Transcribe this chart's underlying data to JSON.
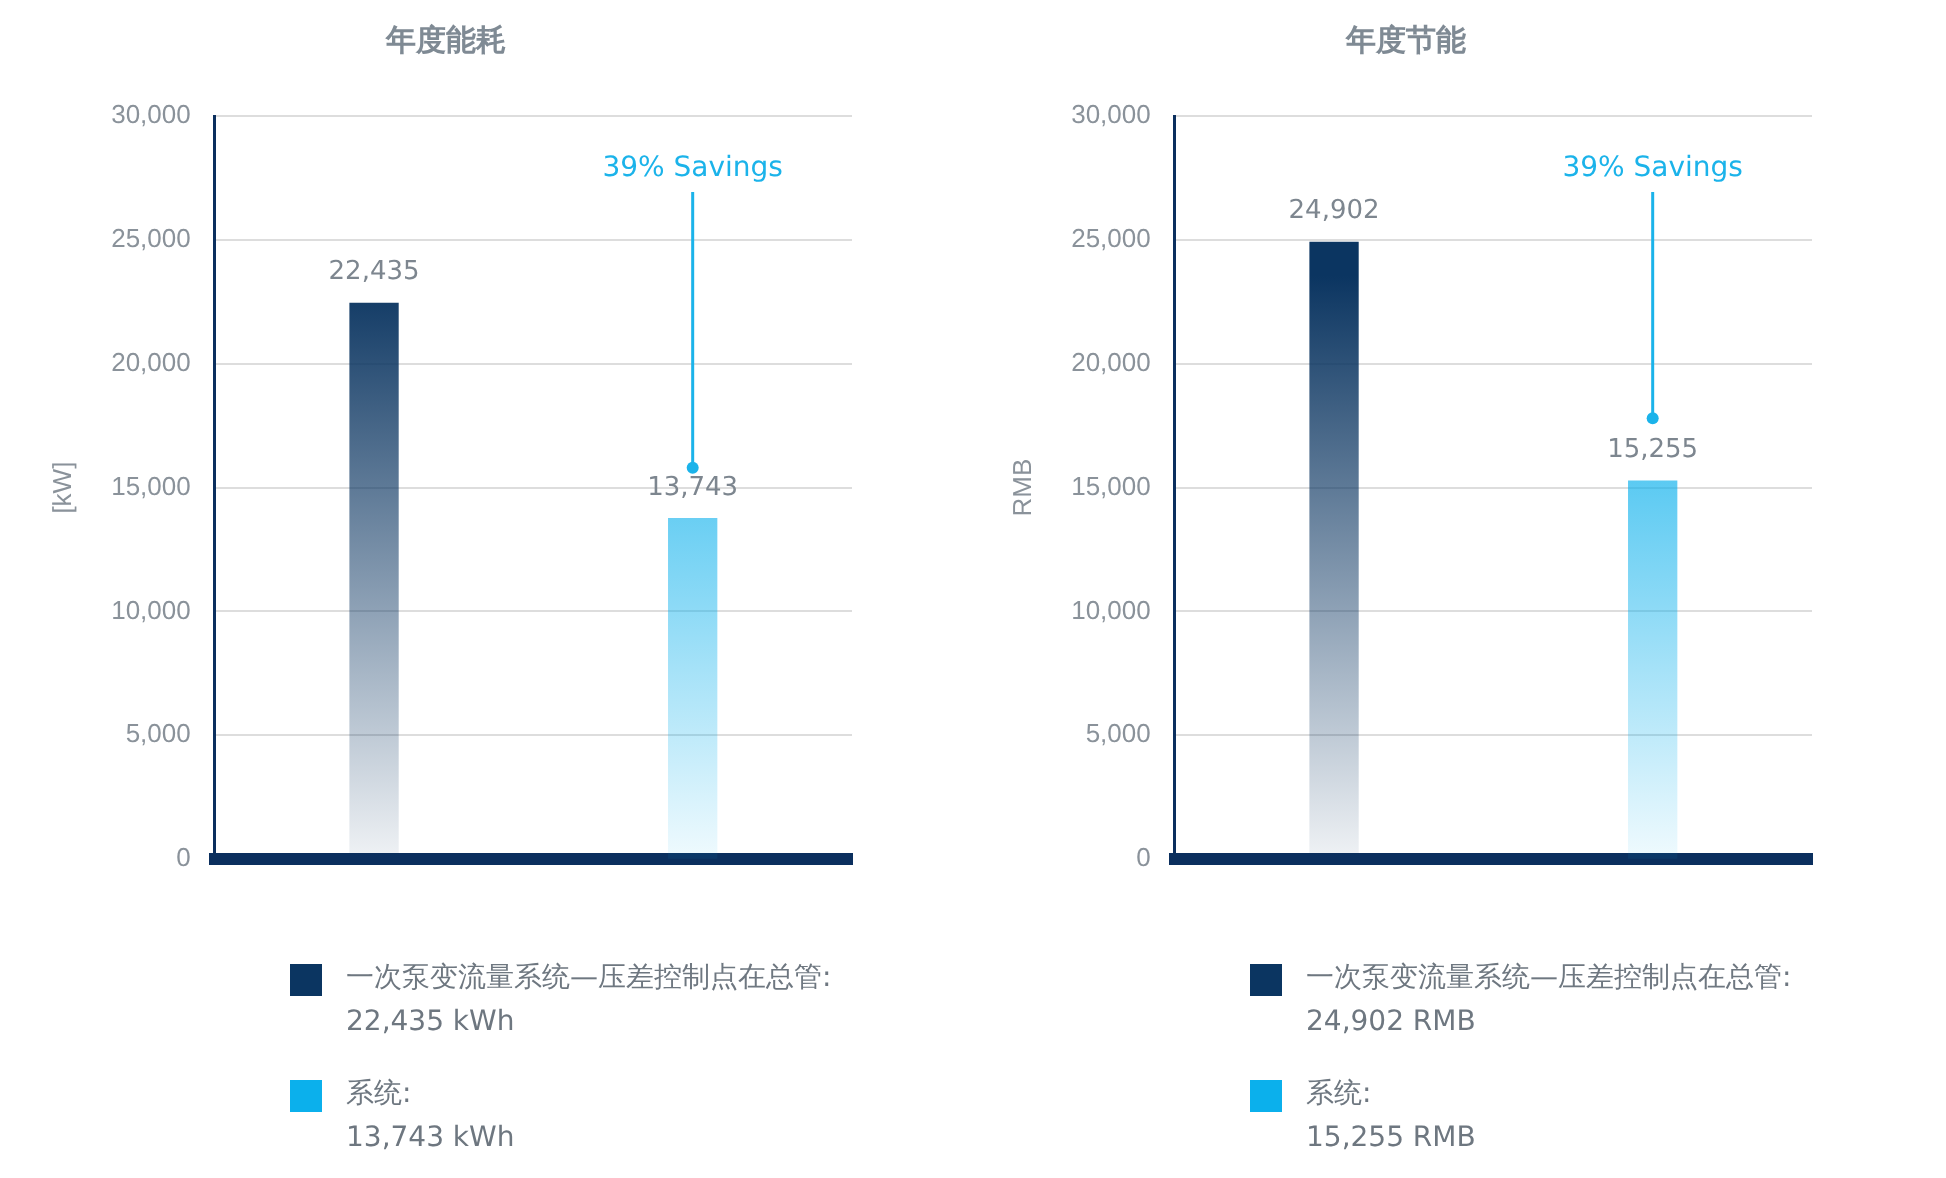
{
  "chart_data": [
    {
      "type": "bar",
      "title": "年度能耗",
      "ylabel": "[kW]",
      "categories": [
        null,
        null
      ],
      "series": [
        {
          "name": "一次泵变流量系统—压差控制点在总管:",
          "color": "#0b3561",
          "values": [
            22435,
            null
          ],
          "value_labels": [
            "22,435",
            null
          ]
        },
        {
          "name": "系统:",
          "color": "#0bb0ec",
          "values": [
            null,
            13743
          ],
          "value_labels": [
            null,
            "13,743"
          ]
        }
      ],
      "ylim": [
        0,
        30000
      ],
      "yticks": [
        0,
        {
          "value": 5000,
          "label": "5,000"
        },
        {
          "value": 10000,
          "label": "10,000"
        },
        {
          "value": 15000,
          "label": "15,000"
        },
        {
          "value": 20000,
          "label": "20,000"
        },
        {
          "value": 25000,
          "label": "25,000"
        },
        {
          "value": 30000,
          "label": "30,000"
        }
      ],
      "grid": "y",
      "legend": "bottom",
      "annotations": [
        "22,435 kWh",
        "13,743 kWh",
        {
          "text": "39% Savings",
          "y": 15800
        }
      ]
    },
    {
      "type": "bar",
      "title": "年度节能",
      "ylabel": "RMB",
      "categories": [
        null,
        null
      ],
      "series": [
        {
          "name": "一次泵变流量系统—压差控制点在总管:",
          "color": "#0b3561",
          "values": [
            24902,
            null
          ],
          "value_labels": [
            "24,902",
            null
          ]
        },
        {
          "name": "系统:",
          "color": "#0bb0ec",
          "values": [
            null,
            15255
          ],
          "value_labels": [
            null,
            "15,255"
          ]
        }
      ],
      "ylim": [
        0,
        30000
      ],
      "yticks": [
        0,
        {
          "value": 5000,
          "label": "5,000"
        },
        {
          "value": 10000,
          "label": "10,000"
        },
        {
          "value": 15000,
          "label": "15,000"
        },
        {
          "value": 20000,
          "label": "20,000"
        },
        {
          "value": 25000,
          "label": "25,000"
        },
        {
          "value": 30000,
          "label": "30,000"
        }
      ],
      "grid": "y",
      "legend": "bottom",
      "annotations": [
        "24,902 RMB",
        "15,255 RMB",
        {
          "text": "39% Savings",
          "y": 17800
        }
      ]
    }
  ]
}
